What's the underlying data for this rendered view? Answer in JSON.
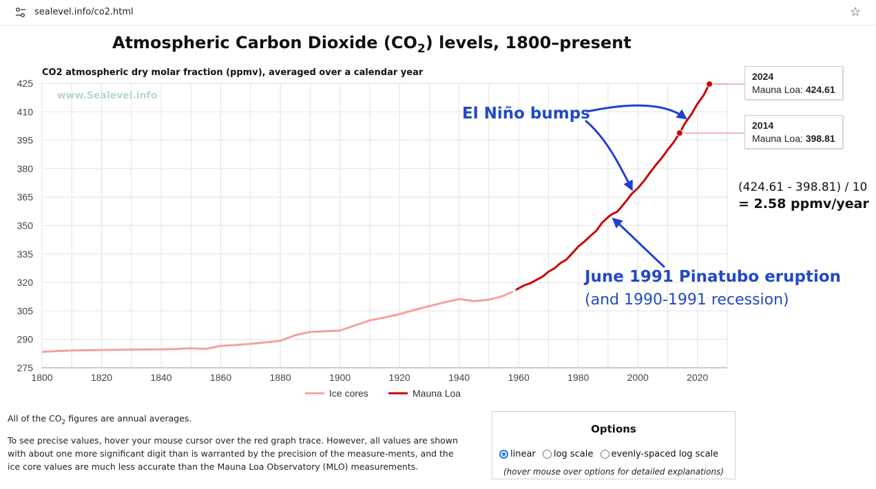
{
  "browser": {
    "url": "sealevel.info/co2.html",
    "icons": [
      "tune-icon",
      "star-icon"
    ]
  },
  "page": {
    "title_main": "Atmospheric Carbon Dioxide (CO",
    "title_sub": "2",
    "title_end": ") levels, 1800–present",
    "subtitle": "CO2 atmospheric dry molar fraction (ppmv), averaged over a calendar year"
  },
  "chart_data": {
    "type": "line",
    "title": "Atmospheric Carbon Dioxide (CO2) levels, 1800–present",
    "ylabel": "CO2 atmospheric dry molar fraction (ppmv), averaged over a calendar year",
    "xlabel": "",
    "xlim": [
      1800,
      2030
    ],
    "ylim": [
      275,
      425
    ],
    "x_ticks": [
      1800,
      1820,
      1840,
      1860,
      1880,
      1900,
      1920,
      1940,
      1960,
      1980,
      2000,
      2020
    ],
    "y_ticks": [
      275,
      290,
      305,
      320,
      335,
      350,
      365,
      380,
      395,
      410,
      425
    ],
    "grid": true,
    "legend": "bottom",
    "watermark": "www.Sealevel.info",
    "series": [
      {
        "name": "Ice cores",
        "color": "#f4a0a0",
        "x": [
          1800,
          1805,
          1810,
          1820,
          1830,
          1840,
          1845,
          1850,
          1855,
          1860,
          1865,
          1870,
          1875,
          1880,
          1885,
          1890,
          1895,
          1900,
          1905,
          1910,
          1915,
          1920,
          1925,
          1930,
          1935,
          1940,
          1945,
          1950,
          1955,
          1958
        ],
        "values": [
          283.4,
          283.8,
          284.1,
          284.4,
          284.6,
          284.7,
          284.9,
          285.3,
          285.0,
          286.6,
          287.0,
          287.6,
          288.4,
          289.2,
          292.2,
          293.9,
          294.3,
          294.6,
          297.3,
          300.0,
          301.5,
          303.3,
          305.5,
          307.5,
          309.5,
          311.2,
          310.2,
          310.9,
          313.0,
          315.2
        ]
      },
      {
        "name": "Mauna Loa",
        "color": "#cc0000",
        "x": [
          1959,
          1960,
          1962,
          1964,
          1966,
          1968,
          1970,
          1972,
          1974,
          1976,
          1978,
          1980,
          1982,
          1984,
          1986,
          1988,
          1990,
          1991,
          1992,
          1993,
          1994,
          1996,
          1998,
          2000,
          2002,
          2004,
          2006,
          2008,
          2010,
          2012,
          2014,
          2016,
          2018,
          2020,
          2022,
          2024
        ],
        "values": [
          315.98,
          316.91,
          318.54,
          319.62,
          321.39,
          323.05,
          325.68,
          327.45,
          330.18,
          332.07,
          335.41,
          338.91,
          341.48,
          344.44,
          347.15,
          351.48,
          354.45,
          355.7,
          356.54,
          357.21,
          358.96,
          362.74,
          366.84,
          369.71,
          373.45,
          377.7,
          381.9,
          385.59,
          389.9,
          393.87,
          398.81,
          404.41,
          408.72,
          414.21,
          418.53,
          424.61
        ]
      }
    ],
    "markers": [
      {
        "year": "2024",
        "x": 2024,
        "value": 424.61,
        "label": "Mauna Loa:",
        "value_text": "424.61"
      },
      {
        "year": "2014",
        "x": 2014,
        "value": 398.81,
        "label": "Mauna Loa:",
        "value_text": "398.81"
      }
    ]
  },
  "annotations": {
    "el_nino": "El Niño bumps",
    "pinatubo": "June 1991 Pinatubo eruption",
    "recession": "(and 1990-1991 recession)",
    "calc_line1": "(424.61 - 398.81) / 10",
    "calc_line2": "= 2.58 ppmv/year",
    "arrow_color": "#1f3fd0"
  },
  "text": {
    "para1_a": "All of the CO",
    "para1_sub": "2",
    "para1_b": " figures are annual averages.",
    "para2": "To see precise values, hover your mouse cursor over the red graph trace. However, all values are shown with about one more significant digit than is warranted by the precision of the measure-ments, and the ice core values are much less accurate than the Mauna Loa Observatory (MLO) measurements."
  },
  "options": {
    "title": "Options",
    "items": [
      {
        "label": "linear",
        "selected": true
      },
      {
        "label": "log scale",
        "selected": false
      },
      {
        "label": "evenly-spaced log scale",
        "selected": false
      }
    ],
    "note": "(hover mouse over options for detailed explanations)"
  }
}
